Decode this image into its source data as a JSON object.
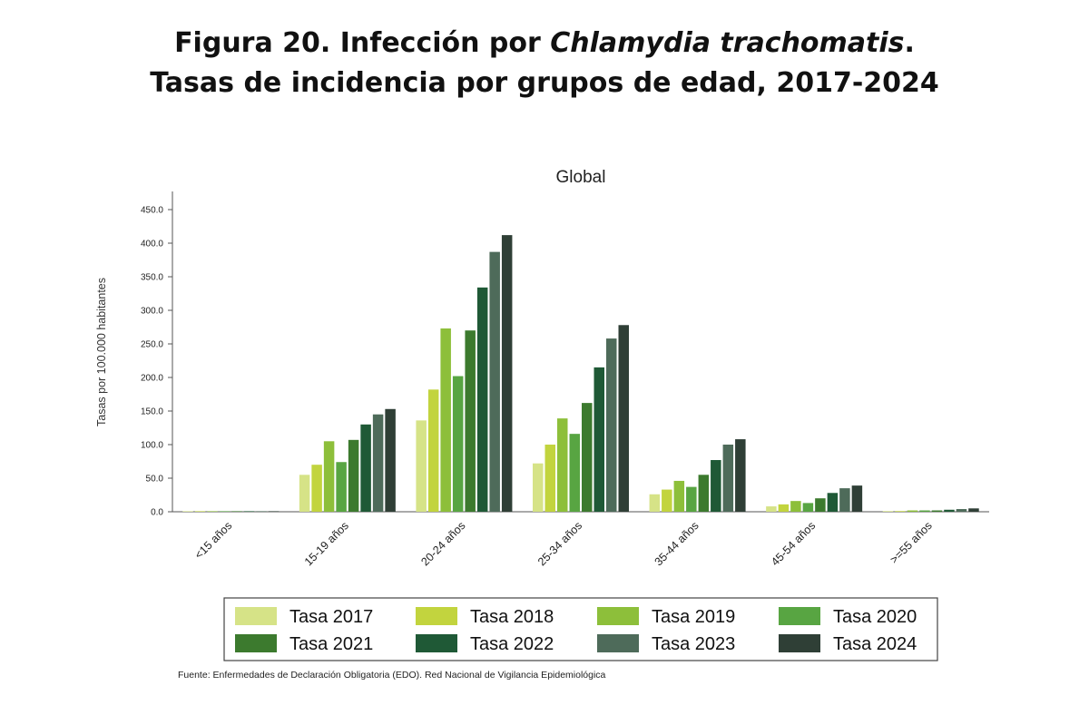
{
  "figure": {
    "title_line1_prefix": "Figura 20. Infección por ",
    "title_line1_italic": "Chlamydia trachomatis",
    "title_line1_suffix": ".",
    "title_line2": "Tasas de incidencia por grupos de edad, 2017-2024",
    "source": "Fuente: Enfermedades de Declaración Obligatoria (EDO). Red Nacional de Vigilancia Epidemiológica"
  },
  "chart_data": {
    "type": "bar",
    "title": "Global",
    "xlabel": "",
    "ylabel": "Tasas por 100.000 habitantes",
    "ylim": [
      0,
      450
    ],
    "yticks": [
      0,
      50,
      100,
      150,
      200,
      250,
      300,
      350,
      400,
      450
    ],
    "ytick_labels": [
      "0.0",
      "50.0",
      "100.0",
      "150.0",
      "200.0",
      "250.0",
      "300.0",
      "350.0",
      "400.0",
      "450.0"
    ],
    "grid": false,
    "legend_position": "bottom",
    "categories": [
      "<15 años",
      "15-19 años",
      "20-24 años",
      "25-34 años",
      "35-44 años",
      "45-54 años",
      ">=55 años"
    ],
    "series": [
      {
        "name": "Tasa 2017",
        "color": "#d6e387",
        "values": [
          0.1,
          55,
          136,
          72,
          26,
          8,
          1
        ]
      },
      {
        "name": "Tasa 2018",
        "color": "#c2d43e",
        "values": [
          0.1,
          70,
          182,
          100,
          33,
          11,
          1
        ]
      },
      {
        "name": "Tasa 2019",
        "color": "#8dbf3a",
        "values": [
          0.2,
          105,
          273,
          139,
          46,
          16,
          2
        ]
      },
      {
        "name": "Tasa 2020",
        "color": "#58a542",
        "values": [
          0.1,
          74,
          202,
          116,
          37,
          13,
          2
        ]
      },
      {
        "name": "Tasa 2021",
        "color": "#3c7a2e",
        "values": [
          0.2,
          107,
          270,
          162,
          55,
          20,
          2
        ]
      },
      {
        "name": "Tasa 2022",
        "color": "#1f5936",
        "values": [
          0.3,
          130,
          334,
          215,
          77,
          28,
          3
        ]
      },
      {
        "name": "Tasa 2023",
        "color": "#4e6b5a",
        "values": [
          0.3,
          145,
          387,
          258,
          100,
          35,
          4
        ]
      },
      {
        "name": "Tasa 2024",
        "color": "#2f3f36",
        "values": [
          0.3,
          153,
          412,
          278,
          108,
          39,
          5
        ]
      }
    ]
  }
}
